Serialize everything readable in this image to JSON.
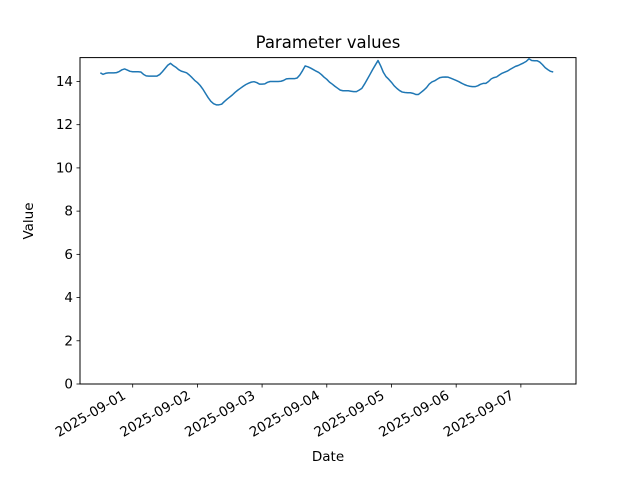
{
  "chart_data": {
    "type": "line",
    "title": "Parameter values",
    "xlabel": "Date",
    "ylabel": "Value",
    "grid": false,
    "legend": "none",
    "background_color": "#ffffff",
    "spine_color": "#000000",
    "x_axis": {
      "tick_labels": [
        "2025-09-01",
        "2025-09-02",
        "2025-09-03",
        "2025-09-04",
        "2025-09-05",
        "2025-09-06",
        "2025-09-07"
      ],
      "tick_hours_from_2025_09_01": [
        0,
        24,
        48,
        72,
        96,
        120,
        144
      ],
      "xlim_hours_from_2025_09_01": [
        -19.55,
        164.45
      ],
      "tick_label_rotation_deg": 30
    },
    "y_axis": {
      "ticks": [
        0,
        2,
        4,
        6,
        8,
        10,
        12,
        14
      ],
      "ylim": [
        0,
        15.105
      ]
    },
    "series": [
      {
        "name": "Parameter values",
        "color": "#1f77b4",
        "line_width": 1.5,
        "x_start_hours_from_2025_09_01": -12,
        "x_step_hours": 1,
        "values": [
          14.4,
          14.33,
          14.38,
          14.4,
          14.4,
          14.4,
          14.41,
          14.46,
          14.54,
          14.58,
          14.53,
          14.47,
          14.45,
          14.45,
          14.45,
          14.44,
          14.33,
          14.26,
          14.25,
          14.25,
          14.25,
          14.25,
          14.32,
          14.45,
          14.6,
          14.75,
          14.84,
          14.74,
          14.66,
          14.55,
          14.48,
          14.44,
          14.4,
          14.3,
          14.18,
          14.05,
          13.95,
          13.82,
          13.65,
          13.45,
          13.25,
          13.08,
          12.97,
          12.92,
          12.92,
          12.95,
          13.07,
          13.18,
          13.28,
          13.38,
          13.5,
          13.6,
          13.69,
          13.78,
          13.86,
          13.92,
          13.97,
          13.99,
          13.95,
          13.88,
          13.88,
          13.89,
          13.96,
          14.0,
          14.0,
          14.0,
          14.0,
          14.01,
          14.05,
          14.12,
          14.13,
          14.13,
          14.13,
          14.16,
          14.3,
          14.5,
          14.72,
          14.68,
          14.62,
          14.55,
          14.48,
          14.42,
          14.32,
          14.2,
          14.1,
          13.97,
          13.88,
          13.78,
          13.69,
          13.6,
          13.57,
          13.57,
          13.57,
          13.55,
          13.53,
          13.53,
          13.6,
          13.68,
          13.88,
          14.1,
          14.32,
          14.55,
          14.76,
          14.97,
          14.72,
          14.42,
          14.22,
          14.1,
          13.96,
          13.8,
          13.68,
          13.58,
          13.51,
          13.49,
          13.48,
          13.48,
          13.45,
          13.4,
          13.4,
          13.5,
          13.6,
          13.72,
          13.88,
          13.98,
          14.03,
          14.11,
          14.18,
          14.2,
          14.21,
          14.2,
          14.15,
          14.1,
          14.05,
          13.99,
          13.92,
          13.86,
          13.81,
          13.78,
          13.76,
          13.76,
          13.8,
          13.87,
          13.91,
          13.91,
          14.0,
          14.12,
          14.18,
          14.21,
          14.3,
          14.38,
          14.43,
          14.48,
          14.56,
          14.63,
          14.7,
          14.74,
          14.8,
          14.86,
          14.93,
          15.05,
          14.97,
          14.96,
          14.96,
          14.9,
          14.78,
          14.64,
          14.55,
          14.47,
          14.44
        ]
      }
    ]
  }
}
